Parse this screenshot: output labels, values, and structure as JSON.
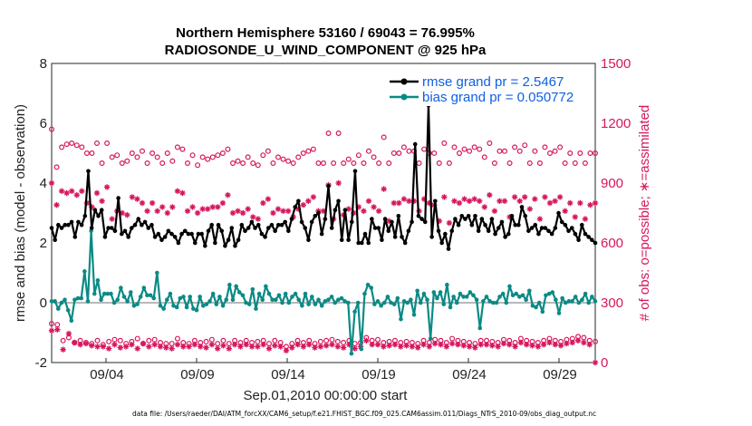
{
  "chart_data": {
    "type": "line",
    "title_line1": "Northern Hemisphere 53160 / 69043 = 76.995%",
    "title_line2": "RADIOSONDE_U_WIND_COMPONENT @ 925 hPa",
    "ylabel_left": "rmse and bias (model - observation)",
    "ylabel_right": "# of obs: o=possible; ∗=assimilated",
    "xlabel": "Sep.01,2010 00:00:00 start",
    "footnote": "data file: /Users/raeder/DAI/ATM_forcXX/CAM6_setup/f.e21.FHIST_BGC.f09_025.CAM6assim.011/Diags_NTrS_2010-09/obs_diag_output.nc",
    "ylim_left": [
      -2,
      8
    ],
    "ylim_right": [
      0,
      1500
    ],
    "xlim_days": [
      1.0,
      31.0
    ],
    "yticks_left": [
      "-2",
      "0",
      "2",
      "4",
      "6",
      "8"
    ],
    "yticks_right": [
      "0",
      "300",
      "600",
      "900",
      "1200",
      "1500"
    ],
    "xticks": [
      "09/04",
      "09/09",
      "09/14",
      "09/19",
      "09/24",
      "09/29"
    ],
    "xtick_days": [
      4,
      9,
      14,
      19,
      24,
      29
    ],
    "colors": {
      "rmse": "#000000",
      "bias": "#0b8a85",
      "counts": "#d6175e",
      "legend_text": "#1060e0",
      "zero_line": "#b8b8b8"
    },
    "series": [
      {
        "name": "rmse grand pr = 2.5467",
        "axis": "left",
        "values": [
          2.5,
          2.1,
          2.6,
          2.5,
          2.6,
          2.6,
          2.7,
          2.2,
          2.7,
          2.6,
          2.9,
          4.4,
          2.5,
          3.1,
          2.9,
          3.1,
          2.2,
          2.5,
          2.5,
          2.4,
          3.5,
          2.3,
          2.4,
          2.2,
          2.5,
          2.6,
          2.8,
          2.6,
          2.7,
          2.5,
          2.6,
          2.2,
          2.3,
          2.1,
          2.2,
          2.4,
          2.3,
          2.2,
          2.0,
          2.3,
          2.4,
          2.3,
          2.3,
          2.0,
          2.3,
          2.3,
          1.9,
          2.4,
          2.6,
          2.0,
          2.6,
          2.4,
          1.9,
          2.1,
          2.5,
          1.9,
          2.1,
          2.6,
          2.4,
          2.5,
          2.7,
          2.5,
          2.6,
          2.3,
          2.2,
          2.5,
          2.6,
          2.4,
          2.6,
          2.6,
          2.7,
          2.4,
          2.8,
          3.2,
          3.4,
          2.7,
          2.5,
          2.1,
          2.7,
          2.9,
          3.0,
          2.3,
          2.8,
          3.9,
          2.5,
          3.1,
          3.4,
          2.1,
          3.1,
          2.1,
          2.7,
          4.4,
          2.0,
          2.0,
          2.3,
          2.0,
          2.8,
          2.5,
          2.5,
          2.1,
          2.8,
          2.4,
          2.7,
          2.2,
          2.9,
          2.2,
          2.0,
          2.4,
          2.7,
          5.3,
          2.9,
          2.8,
          2.7,
          6.6,
          2.2,
          3.4,
          2.4,
          2.0,
          2.3,
          1.8,
          2.4,
          2.8,
          2.6,
          2.9,
          2.8,
          2.9,
          2.6,
          2.9,
          2.4,
          2.8,
          2.6,
          2.4,
          2.8,
          2.3,
          2.5,
          2.7,
          2.2,
          2.3,
          2.9,
          2.6,
          2.6,
          3.2,
          2.9,
          2.4,
          2.5,
          2.6,
          2.3,
          2.5,
          2.5,
          2.4,
          2.3,
          2.5,
          3.0,
          2.7,
          2.6,
          2.4,
          2.5,
          2.3,
          2.1,
          2.6,
          2.3,
          2.2,
          2.1,
          2.0
        ]
      },
      {
        "name": "bias grand pr = 0.050772",
        "axis": "left",
        "values": [
          0.05,
          0.05,
          -0.2,
          0.0,
          0.1,
          -0.25,
          -0.6,
          0.1,
          0.15,
          0.15,
          1.05,
          0.05,
          2.4,
          0.3,
          0.75,
          0.1,
          0.3,
          0.3,
          0.3,
          0.0,
          0.1,
          0.5,
          0.2,
          0.05,
          0.35,
          -0.1,
          -0.05,
          0.2,
          0.5,
          0.25,
          0.25,
          0.15,
          1.0,
          -0.1,
          -0.2,
          0.1,
          0.3,
          -0.1,
          -0.15,
          0.15,
          0.2,
          -0.15,
          0.2,
          -0.2,
          -0.25,
          0.2,
          -0.1,
          -0.05,
          0.05,
          0.3,
          -0.05,
          0.2,
          -0.1,
          0.1,
          0.6,
          0.1,
          0.55,
          0.35,
          0.25,
          0.0,
          -0.05,
          0.45,
          -0.2,
          0.3,
          0.1,
          0.55,
          0.3,
          0.1,
          0.1,
          0.25,
          0.0,
          0.3,
          0.0,
          0.2,
          0.3,
          0.1,
          -0.1,
          0.3,
          -0.05,
          0.2,
          -0.05,
          0.1,
          -0.1,
          0.05,
          0.1,
          0.2,
          0.0,
          0.1,
          0.15,
          0.05,
          0.0,
          -1.7,
          -0.3,
          0.0,
          -1.55,
          0.3,
          0.6,
          0.5,
          -0.05,
          0.05,
          -0.1,
          0.0,
          0.2,
          0.0,
          -0.05,
          0.15,
          -0.55,
          0.05,
          0.0,
          0.1,
          -0.4,
          0.4,
          0.0,
          0.3,
          0.1,
          -1.2,
          0.35,
          0.15,
          0.35,
          -0.05,
          0.6,
          -0.15,
          0.2,
          0.0,
          0.3,
          0.2,
          0.2,
          0.35,
          0.25,
          0.1,
          -0.85,
          0.05,
          0.2,
          0.05,
          0.0,
          0.0,
          0.2,
          0.3,
          0.0,
          0.55,
          0.25,
          0.3,
          0.2,
          0.25,
          0.1,
          0.4,
          -0.1,
          -0.15,
          0.0,
          -0.3,
          0.25,
          0.3,
          0.35,
          0.1,
          -0.35,
          0.15,
          0.0,
          0.05,
          0.05,
          0.2,
          0.0,
          0.1,
          0.3,
          0.0,
          0.2,
          0.05
        ]
      },
      {
        "name": "obs possible",
        "axis": "right",
        "marker": "o",
        "values": [
          1170,
          980,
          1080,
          1095,
          1100,
          1090,
          1080,
          1050,
          1050,
          1100,
          1000,
          1100,
          1030,
          1040,
          1000,
          1010,
          1050,
          1030,
          1060,
          1000,
          1050,
          1030,
          1000,
          1050,
          1010,
          1080,
          1070,
          1000,
          1040,
          990,
          1030,
          1020,
          1030,
          1040,
          1050,
          1070,
          1000,
          1010,
          1000,
          1030,
          1000,
          990,
          1040,
          1060,
          1000,
          1030,
          1020,
          1010,
          1000,
          1030,
          1050,
          1060,
          1070,
          1000,
          1000,
          1150,
          1000,
          1150,
          1000,
          1020,
          1000,
          1040,
          1000,
          1060,
          1030,
          1000,
          1130,
          1000,
          1050,
          1050,
          1080,
          1060,
          1060,
          1000,
          1070,
          1050,
          1050,
          1000,
          1100,
          1000,
          1080,
          1050,
          1070,
          1060,
          1080,
          1070,
          1030,
          1100,
          1000,
          1060,
          1060,
          1000,
          1080,
          1060,
          1090,
          1000,
          1060,
          1000,
          1080,
          1050,
          1060,
          1080,
          1000,
          1050,
          1000,
          1050,
          1000,
          1050,
          1050
        ]
      },
      {
        "name": "obs assimilated",
        "axis": "right",
        "marker": "*",
        "values": [
          900,
          790,
          860,
          850,
          860,
          840,
          860,
          800,
          780,
          850,
          810,
          880,
          720,
          760,
          750,
          740,
          830,
          820,
          800,
          760,
          800,
          760,
          780,
          750,
          780,
          860,
          850,
          760,
          780,
          750,
          770,
          770,
          780,
          780,
          800,
          840,
          750,
          760,
          750,
          770,
          730,
          720,
          800,
          820,
          750,
          770,
          760,
          760,
          730,
          770,
          790,
          810,
          830,
          760,
          760,
          890,
          720,
          900,
          740,
          770,
          750,
          780,
          760,
          810,
          780,
          760,
          870,
          710,
          800,
          800,
          820,
          810,
          810,
          760,
          820,
          800,
          790,
          710,
          830,
          700,
          810,
          800,
          820,
          810,
          820,
          810,
          780,
          840,
          760,
          810,
          810,
          730,
          830,
          810,
          830,
          770,
          820,
          720,
          830,
          800,
          810,
          830,
          760,
          800,
          730,
          800,
          720,
          790,
          800
        ]
      },
      {
        "name": "obs possible bottom",
        "axis": "right",
        "marker": "o",
        "values": [
          195,
          190,
          110,
          125,
          100,
          110,
          100,
          95,
          110,
          90,
          105,
          115,
          110,
          95,
          105,
          120,
          95,
          110,
          115,
          100,
          95,
          95,
          120,
          100,
          95,
          110,
          100,
          105,
          115,
          95,
          110,
          95,
          110,
          100,
          110,
          100,
          105,
          110,
          95,
          110,
          100,
          80,
          95,
          110,
          100,
          110,
          95,
          105,
          110,
          115,
          105,
          100,
          110,
          95,
          100,
          125,
          110,
          115,
          100,
          105,
          110,
          100,
          105,
          100,
          95,
          110,
          100,
          115,
          110,
          100,
          120,
          110,
          105,
          100,
          95,
          110,
          110,
          105,
          100,
          115,
          110,
          100,
          120,
          110,
          105,
          100,
          110,
          120,
          110,
          105,
          115,
          120,
          130,
          125,
          110,
          105
        ]
      },
      {
        "name": "obs assimilated bottom",
        "axis": "right",
        "marker": "*",
        "values": [
          160,
          165,
          65,
          145,
          100,
          90,
          95,
          85,
          80,
          80,
          70,
          90,
          75,
          80,
          90,
          70,
          95,
          80,
          90,
          80,
          75,
          70,
          90,
          80,
          80,
          90,
          80,
          75,
          90,
          70,
          85,
          70,
          90,
          80,
          90,
          80,
          80,
          90,
          70,
          85,
          80,
          60,
          75,
          90,
          80,
          90,
          75,
          80,
          85,
          90,
          80,
          75,
          90,
          70,
          80,
          110,
          90,
          90,
          80,
          85,
          90,
          80,
          85,
          80,
          75,
          90,
          80,
          95,
          90,
          80,
          95,
          90,
          85,
          80,
          75,
          90,
          90,
          85,
          80,
          95,
          90,
          80,
          100,
          90,
          85,
          80,
          90,
          100,
          90,
          85,
          95,
          100,
          110,
          100,
          90,
          0
        ]
      }
    ]
  }
}
